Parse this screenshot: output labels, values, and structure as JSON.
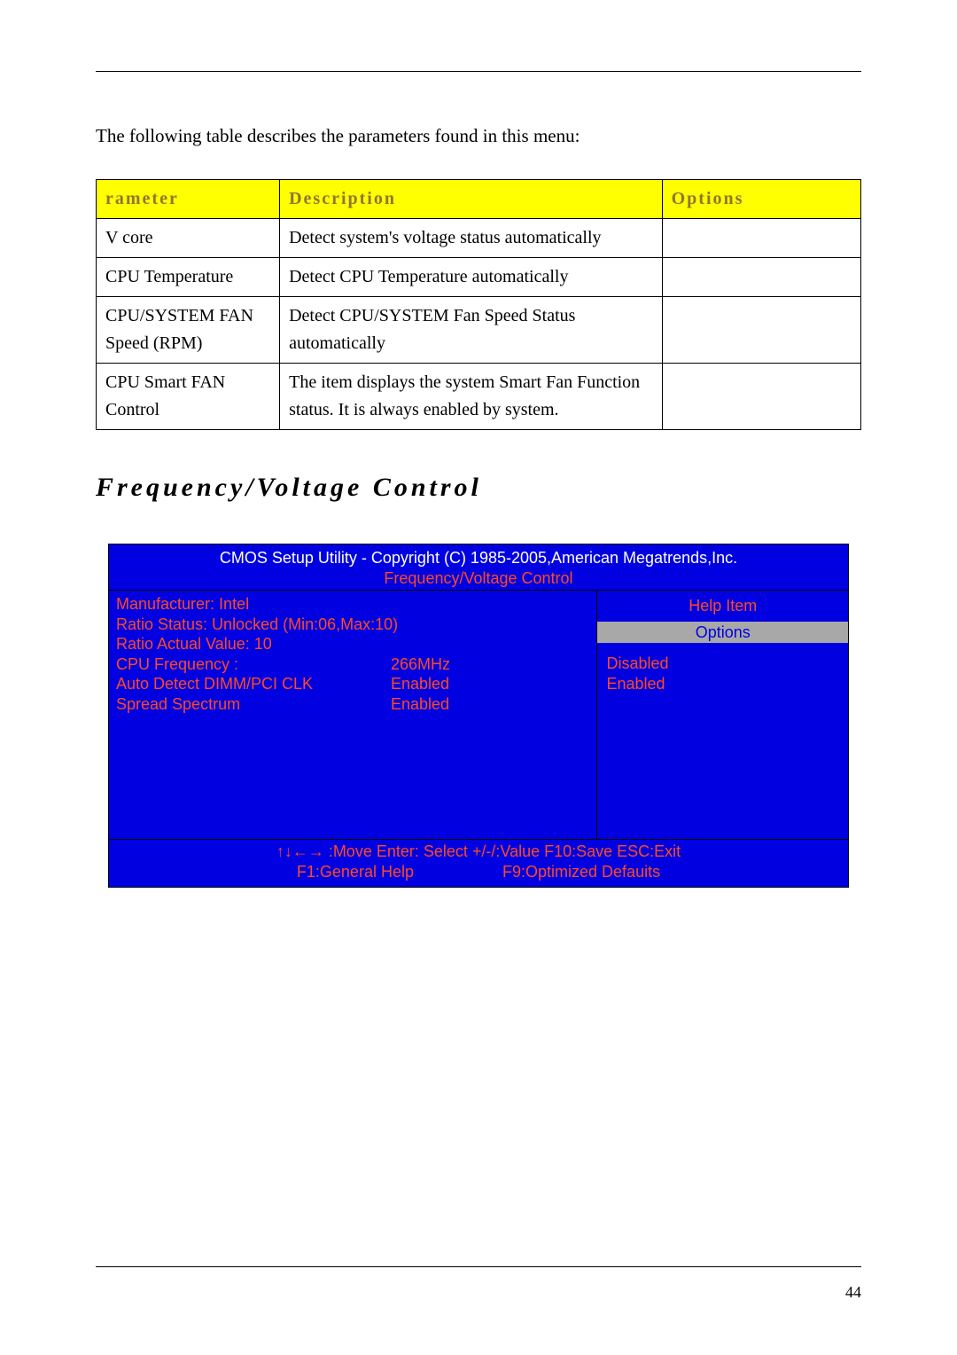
{
  "intro": "The following table describes the parameters found in this menu:",
  "table": {
    "header": {
      "parameter": "rameter",
      "description": "Description",
      "options": "Options",
      "bg_color": "#ffff00",
      "text_color": "#94742e"
    },
    "rows": [
      {
        "parameter": "V core",
        "description": "Detect system's voltage status automatically",
        "options": ""
      },
      {
        "parameter": "CPU Temperature",
        "description": "Detect CPU Temperature automatically",
        "options": ""
      },
      {
        "parameter": "CPU/SYSTEM FAN Speed (RPM)",
        "description": "Detect CPU/SYSTEM Fan Speed Status automatically",
        "options": ""
      },
      {
        "parameter": "CPU Smart FAN Control",
        "description": "The item displays the system Smart Fan Function status. It is always enabled by system.",
        "options": ""
      }
    ]
  },
  "section_heading": "Frequency/Voltage Control",
  "bios": {
    "colors": {
      "bg": "#0000e0",
      "header_text": "#ffffff",
      "accent": "#ff4a22",
      "options_bg": "#a8a8a8",
      "options_text": "#0000e0"
    },
    "title": "CMOS Setup Utility - Copyright (C) 1985-2005,American Megatrends,Inc.",
    "subtitle": "Frequency/Voltage Control",
    "left_info": [
      "Manufacturer: Intel",
      "Ratio Status: Unlocked (Min:06,Max:10)",
      "Ratio Actual Value: 10"
    ],
    "left_kv": [
      {
        "k": "CPU Frequency            :",
        "v": "266MHz"
      },
      {
        "k": "Auto Detect DIMM/PCI CLK",
        "v": "Enabled"
      },
      {
        "k": "Spread Spectrum",
        "v": "Enabled"
      }
    ],
    "help_label": "Help Item",
    "options_label": "Options",
    "options_list": [
      "Disabled",
      "Enabled"
    ],
    "footer_line1": "↑↓←→ :Move  Enter: Select   +/-/:Value F10:Save  ESC:Exit",
    "footer_line2_left": "F1:General Help",
    "footer_line2_right": "F9:Optimized Defauits"
  },
  "page_number": "44"
}
